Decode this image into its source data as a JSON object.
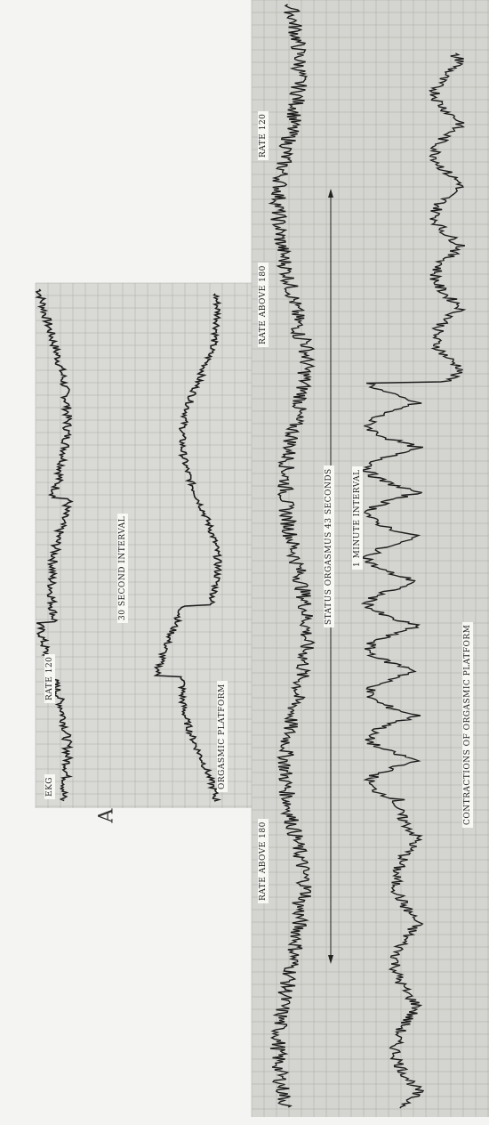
{
  "panel_a": {
    "letter": "A",
    "labels": {
      "ekg": "EKG",
      "rate": "RATE 120",
      "interval": "30 SECOND INTERVAL",
      "platform": "ORGASMIC PLATFORM"
    }
  },
  "panel_b": {
    "labels": {
      "rate_top": "RATE 120",
      "rate_above_upper": "RATE ABOVE 180",
      "rate_above_lower": "RATE ABOVE 180",
      "status": "STATUS ORGASMUS  43  SECONDS",
      "interval": "1 MINUTE INTERVAL",
      "contractions": "CONTRACTIONS OF ORGASMIC PLATFORM"
    }
  }
}
